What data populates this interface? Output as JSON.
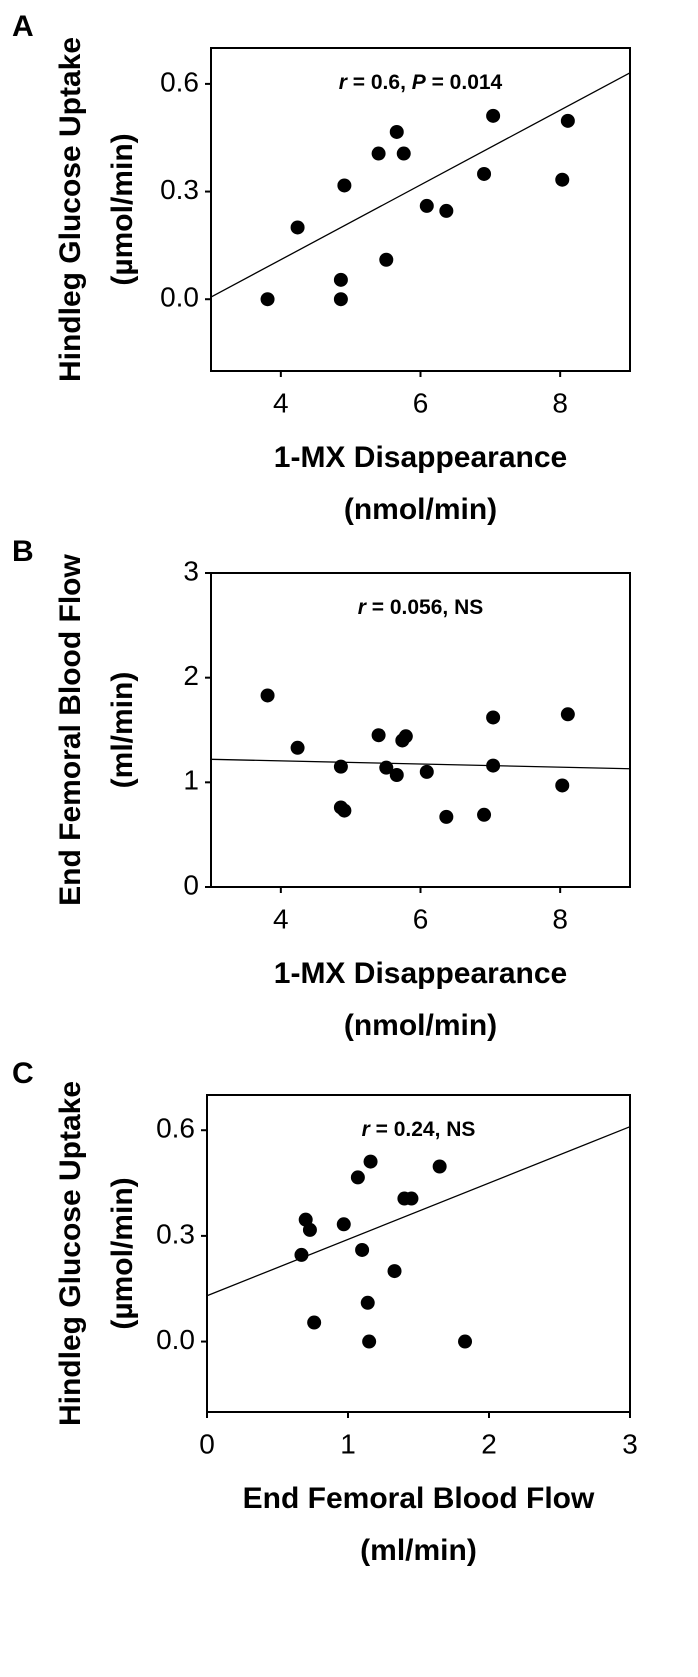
{
  "chart_data": [
    {
      "type": "scatter",
      "label": "A",
      "annotation": [
        {
          "text": "r",
          "italic": true
        },
        {
          "text": " = 0.6, "
        },
        {
          "text": "P",
          "italic": true
        },
        {
          "text": " = 0.014"
        }
      ],
      "xlabel": [
        "1-MX Disappearance",
        "(nmol/min)"
      ],
      "ylabel": [
        "Hindleg Glucose Uptake",
        "(µmol/min)"
      ],
      "xlim": [
        3,
        9
      ],
      "ylim": [
        -0.2,
        0.7
      ],
      "xticks": [
        4,
        6,
        8
      ],
      "yticks": [
        {
          "value": 0,
          "label": "0.0"
        },
        0.3,
        0.6
      ],
      "color": "#000000",
      "x": [
        3.81,
        4.24,
        4.86,
        4.86,
        4.91,
        5.4,
        5.51,
        5.66,
        5.76,
        6.09,
        6.37,
        6.91,
        7.04,
        8.03,
        8.11
      ],
      "y": [
        0.0,
        0.2,
        0.054,
        0.0,
        0.317,
        0.406,
        0.11,
        0.466,
        0.406,
        0.26,
        0.246,
        0.349,
        0.511,
        0.333,
        0.497
      ],
      "fit": {
        "x": [
          3,
          9
        ],
        "y": [
          0.006,
          0.631
        ]
      }
    },
    {
      "type": "scatter",
      "label": "B",
      "annotation": [
        {
          "text": "r",
          "italic": true
        },
        {
          "text": " = 0.056, NS"
        }
      ],
      "xlabel": [
        "1-MX Disappearance",
        "(nmol/min)"
      ],
      "ylabel": [
        "End Femoral Blood Flow",
        "(ml/min)"
      ],
      "xlim": [
        3,
        9
      ],
      "ylim": [
        0,
        3
      ],
      "xticks": [
        4,
        6,
        8
      ],
      "yticks": [
        0,
        1,
        2,
        3
      ],
      "color": "#000000",
      "x": [
        3.81,
        4.24,
        4.86,
        4.86,
        4.91,
        5.4,
        5.51,
        5.66,
        5.74,
        5.79,
        6.09,
        6.37,
        6.91,
        7.04,
        7.04,
        8.03,
        8.11
      ],
      "y": [
        1.83,
        1.33,
        1.15,
        0.76,
        0.73,
        1.45,
        1.14,
        1.07,
        1.4,
        1.44,
        1.1,
        0.67,
        0.69,
        1.62,
        1.16,
        0.97,
        1.65
      ],
      "fit": {
        "x": [
          3,
          9
        ],
        "y": [
          1.22,
          1.13
        ]
      }
    },
    {
      "type": "scatter",
      "label": "C",
      "annotation": [
        {
          "text": "r",
          "italic": true
        },
        {
          "text": " = 0.24, NS"
        }
      ],
      "xlabel": [
        "End Femoral Blood Flow",
        "(ml/min)"
      ],
      "ylabel": [
        "Hindleg Glucose Uptake",
        "(µmol/min)"
      ],
      "xlim": [
        0,
        3
      ],
      "ylim": [
        -0.2,
        0.7
      ],
      "xticks": [
        0,
        1,
        2,
        3
      ],
      "yticks": [
        {
          "value": 0,
          "label": "0.0"
        },
        0.3,
        0.6
      ],
      "color": "#000000",
      "x": [
        0.7,
        0.73,
        0.67,
        0.76,
        0.97,
        1.07,
        1.1,
        1.14,
        1.15,
        1.16,
        1.33,
        1.4,
        1.45,
        1.65,
        1.83
      ],
      "y": [
        0.346,
        0.317,
        0.246,
        0.054,
        0.333,
        0.466,
        0.26,
        0.11,
        0.0,
        0.511,
        0.2,
        0.406,
        0.406,
        0.497,
        0.0
      ],
      "fit": {
        "x": [
          0,
          3
        ],
        "y": [
          0.13,
          0.61
        ]
      }
    }
  ]
}
